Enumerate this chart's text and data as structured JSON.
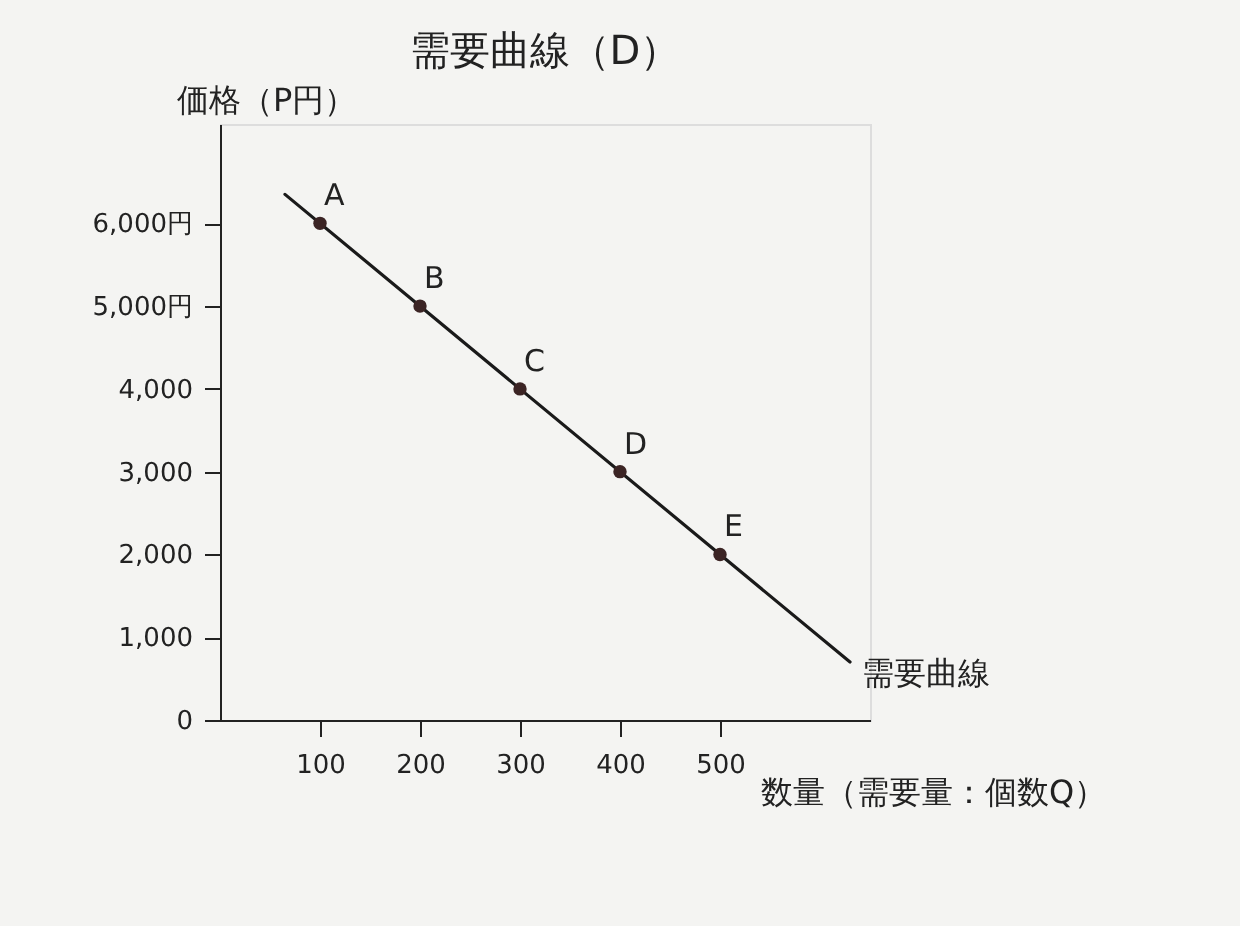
{
  "chart_data": {
    "type": "line",
    "title": "需要曲線（D）",
    "xlabel": "数量（需要量：個数Q）",
    "ylabel": "価格（P円）",
    "series": [
      {
        "name": "需要曲線",
        "color": "#1a1a1a",
        "marker": "none",
        "x": [
          65,
          630
        ],
        "values": [
          6350,
          700
        ]
      },
      {
        "type": "scatter",
        "color": "#3b2424",
        "marker": "circle",
        "x": [
          100,
          200,
          300,
          400,
          500
        ],
        "values": [
          6000,
          5000,
          4000,
          3000,
          2000
        ]
      }
    ],
    "annotations": [
      {
        "text": "A",
        "x": 100,
        "y": 6000
      },
      {
        "text": "B",
        "x": 200,
        "y": 5000
      },
      {
        "text": "C",
        "x": 300,
        "y": 4000
      },
      {
        "text": "D",
        "x": 400,
        "y": 3000
      },
      {
        "text": "E",
        "x": 500,
        "y": 2000
      }
    ],
    "xlim": [
      0,
      650
    ],
    "xticks": [
      100,
      200,
      300,
      400,
      500
    ],
    "ylim": [
      0,
      7200
    ],
    "yticks": [
      {
        "value": 0,
        "label": "0"
      },
      {
        "value": 1000,
        "label": "1,000"
      },
      {
        "value": 2000,
        "label": "2,000"
      },
      {
        "value": 3000,
        "label": "3,000"
      },
      {
        "value": 4000,
        "label": "4,000"
      },
      {
        "value": 5000,
        "label": "5,000円"
      },
      {
        "value": 6000,
        "label": "6,000円"
      }
    ],
    "grid": false,
    "legend": false
  }
}
